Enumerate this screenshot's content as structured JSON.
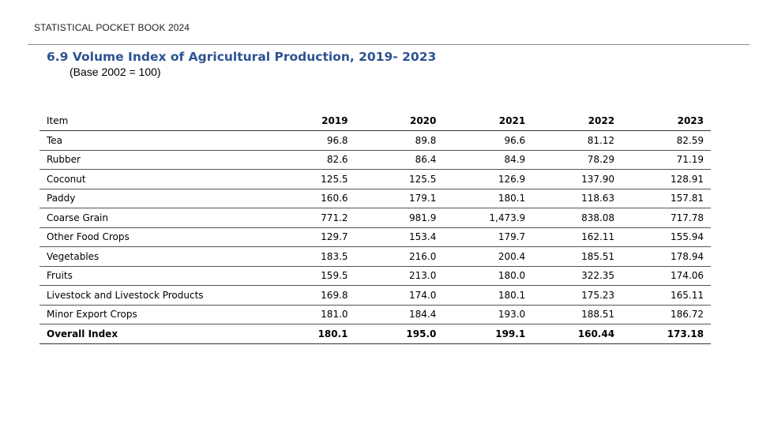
{
  "header": {
    "running_title": "STATISTICAL POCKET BOOK 2024"
  },
  "table": {
    "title": "6.9 Volume Index of Agricultural Production, 2019- 2023",
    "subtitle": "(Base 2002 = 100)",
    "columns": [
      "Item",
      "2019",
      "2020",
      "2021",
      "2022",
      "2023"
    ],
    "rows": [
      [
        "Tea",
        "96.8",
        "89.8",
        "96.6",
        "81.12",
        "82.59"
      ],
      [
        "Rubber",
        "82.6",
        "86.4",
        "84.9",
        "78.29",
        "71.19"
      ],
      [
        "Coconut",
        "125.5",
        "125.5",
        "126.9",
        "137.90",
        "128.91"
      ],
      [
        "Paddy",
        "160.6",
        "179.1",
        "180.1",
        "118.63",
        "157.81"
      ],
      [
        "Coarse Grain",
        "771.2",
        "981.9",
        "1,473.9",
        "838.08",
        "717.78"
      ],
      [
        "Other Food Crops",
        "129.7",
        "153.4",
        "179.7",
        "162.11",
        "155.94"
      ],
      [
        "Vegetables",
        "183.5",
        "216.0",
        "200.4",
        "185.51",
        "178.94"
      ],
      [
        "Fruits",
        "159.5",
        "213.0",
        "180.0",
        "322.35",
        "174.06"
      ],
      [
        "Livestock and Livestock Products",
        "169.8",
        "174.0",
        "180.1",
        "175.23",
        "165.11"
      ],
      [
        "Minor Export Crops",
        "181.0",
        "184.4",
        "193.0",
        "188.51",
        "186.72"
      ]
    ],
    "total": [
      "Overall Index",
      "180.1",
      "195.0",
      "199.1",
      "160.44",
      "173.18"
    ]
  }
}
